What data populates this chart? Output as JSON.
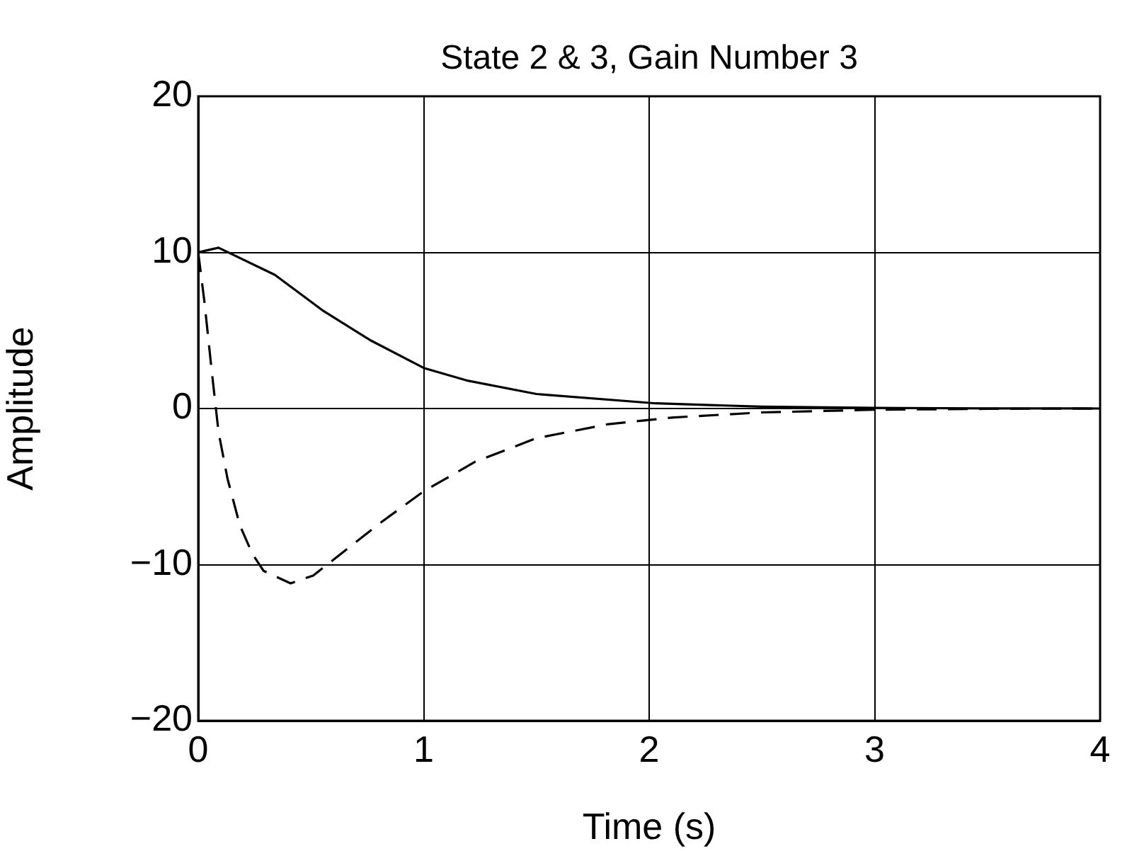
{
  "chart_data": {
    "type": "line",
    "title": "State 2 & 3, Gain Number 3",
    "xlabel": "Time (s)",
    "ylabel": "Amplitude",
    "xlim": [
      0,
      4
    ],
    "ylim": [
      -20,
      20
    ],
    "xticks": [
      0,
      1,
      2,
      3,
      4
    ],
    "yticks": [
      {
        "value": -20,
        "label": "−20"
      },
      {
        "value": -10,
        "label": "−10"
      },
      0,
      10,
      20
    ],
    "grid": true,
    "legend": false,
    "marker": "none",
    "series": [
      {
        "color": "#000000",
        "line_style": "solid",
        "x": [
          0,
          0.09,
          0.34,
          0.55,
          0.76,
          1,
          1.19,
          1.5,
          2.03,
          2.5,
          3,
          3.5,
          4
        ],
        "values": [
          10,
          10.3,
          8.56,
          6.3,
          4.4,
          2.6,
          1.8,
          0.93,
          0.33,
          0.12,
          0.04,
          0.01,
          0
        ]
      },
      {
        "color": "#000000",
        "line_style": "dashed",
        "x": [
          0,
          0.027,
          0.06,
          0.09,
          0.13,
          0.185,
          0.24,
          0.29,
          0.41,
          0.51,
          0.66,
          0.81,
          1,
          1.23,
          1.5,
          1.82,
          2.11,
          2.5,
          3,
          3.5,
          4
        ],
        "values": [
          10,
          6.9,
          2.4,
          -1.5,
          -4.5,
          -7.5,
          -9.3,
          -10.4,
          -11.2,
          -10.7,
          -9,
          -7.3,
          -5.3,
          -3.4,
          -1.9,
          -1,
          -0.57,
          -0.25,
          -0.08,
          -0.02,
          0
        ]
      }
    ]
  }
}
